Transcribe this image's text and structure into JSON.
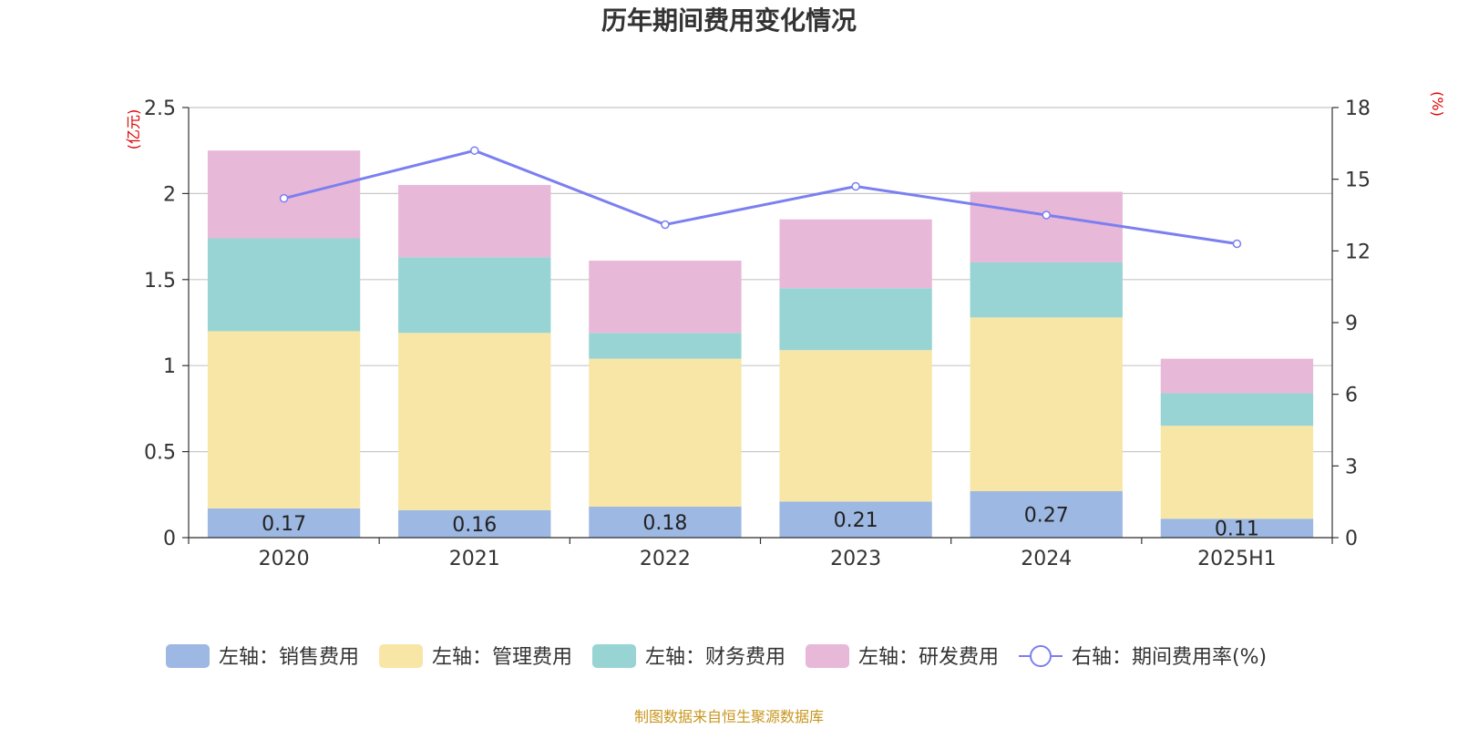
{
  "chart_data": {
    "type": "bar",
    "title": "历年期间费用变化情况",
    "stacked": true,
    "categories": [
      "2020",
      "2021",
      "2022",
      "2023",
      "2024",
      "2025H1"
    ],
    "y_left": {
      "unit": "(亿元)",
      "range": [
        0,
        2.5
      ],
      "ticks": [
        "0",
        "0.5",
        "1",
        "1.5",
        "2",
        "2.5"
      ]
    },
    "y_right": {
      "unit": "(%)",
      "range": [
        0,
        18
      ],
      "ticks": [
        "0",
        "3",
        "6",
        "9",
        "12",
        "15",
        "18"
      ]
    },
    "grid": true,
    "legend_position": "bottom",
    "series": [
      {
        "name": "左轴：销售费用",
        "axis": "left",
        "type": "bar",
        "color": "#9db8e2",
        "values": [
          0.17,
          0.16,
          0.18,
          0.21,
          0.27,
          0.11
        ],
        "labels": [
          "0.17",
          "0.16",
          "0.18",
          "0.21",
          "0.27",
          "0.11"
        ]
      },
      {
        "name": "左轴：管理费用",
        "axis": "left",
        "type": "bar",
        "color": "#f8e6a6",
        "values": [
          1.03,
          1.03,
          0.86,
          0.88,
          1.01,
          0.54
        ]
      },
      {
        "name": "左轴：财务费用",
        "axis": "left",
        "type": "bar",
        "color": "#98d4d4",
        "values": [
          0.54,
          0.44,
          0.15,
          0.36,
          0.32,
          0.19
        ]
      },
      {
        "name": "左轴：研发费用",
        "axis": "left",
        "type": "bar",
        "color": "#e8b8d8",
        "values": [
          0.51,
          0.42,
          0.42,
          0.4,
          0.41,
          0.2
        ]
      },
      {
        "name": "右轴：期间费用率(%)",
        "axis": "right",
        "type": "line",
        "color": "#7b7ff0",
        "values": [
          14.2,
          16.2,
          13.1,
          14.7,
          13.5,
          12.3
        ]
      }
    ]
  },
  "source_text": "制图数据来自恒生聚源数据库"
}
